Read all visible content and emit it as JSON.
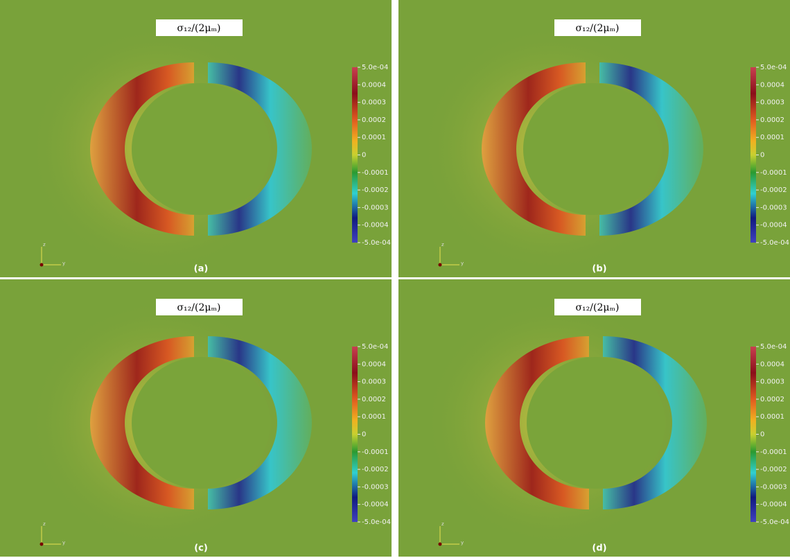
{
  "panels": [
    {
      "title": "σ₁₂/(2μₘ)",
      "label": "(a)"
    },
    {
      "title": "σ₁₂/(2μₘ)",
      "label": "(b)"
    },
    {
      "title": "σ₁₂/(2μₘ)",
      "label": "(c)"
    },
    {
      "title": "σ₁₂/(2μₘ)",
      "label": "(d)"
    }
  ],
  "colorbar": {
    "range": [
      -0.0005,
      0.0005
    ],
    "ticks": [
      {
        "value": 0.0005,
        "label": "5.0e-04"
      },
      0.0004,
      0.0003,
      0.0002,
      0.0001,
      0,
      -0.0001,
      -0.0002,
      -0.0003,
      -0.0004,
      {
        "value": -0.0005,
        "label": "-5.0e-04"
      }
    ]
  },
  "axes_triad": {
    "labels": [
      "z",
      "y"
    ]
  }
}
